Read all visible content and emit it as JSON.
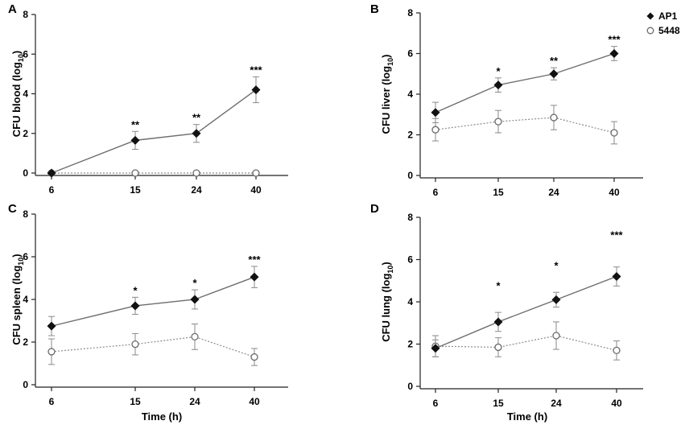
{
  "chart_data": [
    {
      "type": "line",
      "panel": "A",
      "categories": [
        "6",
        "15",
        "24",
        "40"
      ],
      "ylabel_main": "CFU blood (log",
      "ylabel_sub": "10",
      "ylabel_end": ")",
      "xlabel": "",
      "ylim": [
        0,
        8
      ],
      "yticks": [
        "0",
        "2",
        "4",
        "6",
        "8"
      ],
      "series": [
        {
          "name": "AP1",
          "values": [
            0,
            1.65,
            2.0,
            4.2
          ],
          "err": [
            0,
            0.45,
            0.45,
            0.65
          ]
        },
        {
          "name": "5448",
          "values": [
            0,
            0,
            0,
            0
          ],
          "err": [
            0,
            0,
            0,
            0
          ]
        }
      ],
      "significance": [
        "",
        "**",
        "**",
        "***"
      ]
    },
    {
      "type": "line",
      "panel": "B",
      "categories": [
        "6",
        "15",
        "24",
        "40"
      ],
      "ylabel_main": "CFU liver (log",
      "ylabel_sub": "10",
      "ylabel_end": ")",
      "xlabel": "",
      "ylim": [
        0,
        8
      ],
      "yticks": [
        "0",
        "2",
        "4",
        "6",
        "8"
      ],
      "series": [
        {
          "name": "AP1",
          "values": [
            3.1,
            4.45,
            5.0,
            6.0
          ],
          "err": [
            0.5,
            0.35,
            0.3,
            0.35
          ]
        },
        {
          "name": "5448",
          "values": [
            2.25,
            2.65,
            2.85,
            2.1
          ],
          "err": [
            0.55,
            0.55,
            0.6,
            0.55
          ]
        }
      ],
      "significance": [
        "",
        "*",
        "**",
        "***"
      ]
    },
    {
      "type": "line",
      "panel": "C",
      "categories": [
        "6",
        "15",
        "24",
        "40"
      ],
      "ylabel_main": "CFU spleen (log",
      "ylabel_sub": "10",
      "ylabel_end": ")",
      "xlabel": "Time (h)",
      "ylim": [
        0,
        8
      ],
      "yticks": [
        "0",
        "2",
        "4",
        "6",
        "8"
      ],
      "series": [
        {
          "name": "AP1",
          "values": [
            2.75,
            3.7,
            4.0,
            5.05
          ],
          "err": [
            0.45,
            0.4,
            0.45,
            0.5
          ]
        },
        {
          "name": "5448",
          "values": [
            1.55,
            1.9,
            2.25,
            1.3
          ],
          "err": [
            0.6,
            0.5,
            0.6,
            0.4
          ]
        }
      ],
      "significance": [
        "",
        "*",
        "*",
        "***"
      ]
    },
    {
      "type": "line",
      "panel": "D",
      "categories": [
        "6",
        "15",
        "24",
        "40"
      ],
      "ylabel_main": "CFU lung (log",
      "ylabel_sub": "10",
      "ylabel_end": ")",
      "xlabel": "Time (h)",
      "ylim": [
        0,
        8
      ],
      "yticks": [
        "0",
        "2",
        "4",
        "6",
        "8"
      ],
      "series": [
        {
          "name": "AP1",
          "values": [
            1.8,
            3.05,
            4.1,
            5.2
          ],
          "err": [
            0.4,
            0.45,
            0.35,
            0.45
          ]
        },
        {
          "name": "5448",
          "values": [
            1.9,
            1.85,
            2.4,
            1.7
          ],
          "err": [
            0.5,
            0.45,
            0.65,
            0.45
          ]
        }
      ],
      "significance": [
        "",
        "*",
        "*",
        "***"
      ]
    }
  ],
  "legend": [
    {
      "name": "AP1",
      "marker": "filled-diamond"
    },
    {
      "name": "5448",
      "marker": "open-circle"
    }
  ],
  "colors": {
    "ap1_line": "#6e6e6e",
    "ap1_marker": "#111111",
    "strain5448_line": "#8c8c8c",
    "strain5448_marker": "#6a6a6a",
    "error_bar": "#8a8a8a"
  }
}
